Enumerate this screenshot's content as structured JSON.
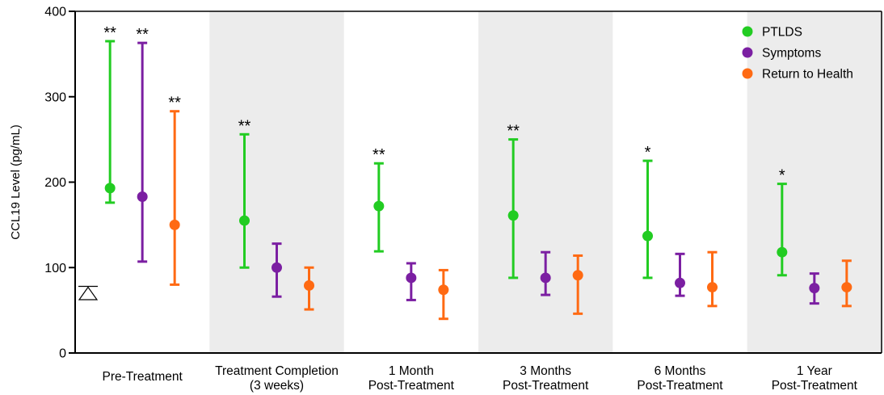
{
  "chart_data": {
    "type": "scatter",
    "ylabel": "CCL19 Level (pg/mL)",
    "ylim": [
      0,
      400
    ],
    "yticks": [
      0,
      100,
      200,
      300,
      400
    ],
    "legend_position": "top-right",
    "categories": [
      [
        "Pre-Treatment"
      ],
      [
        "Treatment Completion",
        "(3 weeks)"
      ],
      [
        "1 Month",
        "Post-Treatment"
      ],
      [
        "3 Months",
        "Post-Treatment"
      ],
      [
        "6 Months",
        "Post-Treatment"
      ],
      [
        "1 Year",
        "Post-Treatment"
      ]
    ],
    "shaded_bands": [
      1,
      3,
      5
    ],
    "series": [
      {
        "name": "PTLDS",
        "color": "#22cc22",
        "points": [
          {
            "y": 193,
            "low": 176,
            "high": 365,
            "sig": "**"
          },
          {
            "y": 155,
            "low": 100,
            "high": 256,
            "sig": "**"
          },
          {
            "y": 172,
            "low": 119,
            "high": 222,
            "sig": "**"
          },
          {
            "y": 161,
            "low": 88,
            "high": 250,
            "sig": "**"
          },
          {
            "y": 137,
            "low": 88,
            "high": 225,
            "sig": "*"
          },
          {
            "y": 118,
            "low": 91,
            "high": 198,
            "sig": "*"
          }
        ]
      },
      {
        "name": "Symptoms",
        "color": "#7b1fa2",
        "points": [
          {
            "y": 183,
            "low": 107,
            "high": 363,
            "sig": "**"
          },
          {
            "y": 100,
            "low": 66,
            "high": 128,
            "sig": ""
          },
          {
            "y": 88,
            "low": 62,
            "high": 105,
            "sig": ""
          },
          {
            "y": 88,
            "low": 68,
            "high": 118,
            "sig": ""
          },
          {
            "y": 82,
            "low": 67,
            "high": 116,
            "sig": ""
          },
          {
            "y": 76,
            "low": 58,
            "high": 93,
            "sig": ""
          }
        ]
      },
      {
        "name": "Return to Health",
        "color": "#ff6a13",
        "points": [
          {
            "y": 150,
            "low": 80,
            "high": 283,
            "sig": "**"
          },
          {
            "y": 79,
            "low": 51,
            "high": 100,
            "sig": ""
          },
          {
            "y": 74,
            "low": 40,
            "high": 97,
            "sig": ""
          },
          {
            "y": 91,
            "low": 46,
            "high": 114,
            "sig": ""
          },
          {
            "y": 77,
            "low": 55,
            "high": 118,
            "sig": ""
          },
          {
            "y": 77,
            "low": 55,
            "high": 108,
            "sig": ""
          }
        ]
      }
    ],
    "reference_marker": {
      "symbol": "triangle",
      "value": 70,
      "bar_value": 78
    }
  }
}
